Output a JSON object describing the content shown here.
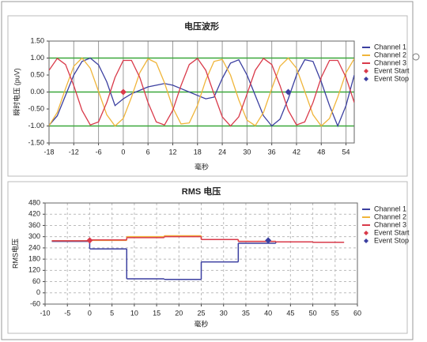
{
  "chart_data": [
    {
      "type": "line",
      "title": "电压波形",
      "x_label": "毫秒",
      "y_label": "瞬时电压 (puV)",
      "x": [
        -18,
        -16,
        -14,
        -12,
        -10,
        -8,
        -6,
        -4,
        -2,
        0,
        2,
        4,
        6,
        8,
        10,
        12,
        14,
        16,
        18,
        20,
        22,
        24,
        26,
        28,
        30,
        32,
        34,
        36,
        38,
        40,
        42,
        44,
        46,
        48,
        50,
        52,
        54,
        56
      ],
      "series": [
        {
          "name": "Channel 1",
          "color": "#3b3fa0",
          "values": [
            -0.98,
            -0.7,
            -0.1,
            0.5,
            0.9,
            1.0,
            0.8,
            0.3,
            -0.4,
            -0.2,
            -0.05,
            0.05,
            0.15,
            0.2,
            0.25,
            0.2,
            0.1,
            0.0,
            -0.1,
            -0.2,
            -0.15,
            0.4,
            0.85,
            0.95,
            0.5,
            -0.1,
            -0.7,
            -1.0,
            -0.8,
            -0.2,
            0.5,
            0.95,
            0.9,
            0.3,
            -0.4,
            -1.0,
            -0.4,
            0.5
          ]
        },
        {
          "name": "Channel 2",
          "color": "#f0b53a",
          "values": [
            -0.99,
            -0.6,
            0.1,
            0.76,
            1.0,
            0.7,
            0.02,
            -0.67,
            -1.0,
            -0.78,
            -0.15,
            0.57,
            0.98,
            0.86,
            0.27,
            -0.46,
            -0.94,
            -0.91,
            -0.39,
            0.35,
            0.9,
            0.96,
            0.5,
            -0.23,
            -0.83,
            -0.99,
            -0.6,
            0.1,
            0.76,
            1.0,
            0.7,
            0.02,
            -0.67,
            -1.0,
            -0.78,
            -0.15,
            0.57,
            0.98
          ]
        },
        {
          "name": "Channel 3",
          "color": "#d93a4a",
          "values": [
            0.64,
            0.99,
            0.81,
            0.19,
            -0.54,
            -0.97,
            -0.88,
            -0.31,
            0.43,
            0.93,
            0.93,
            0.43,
            -0.31,
            -0.88,
            -0.97,
            -0.54,
            0.19,
            0.81,
            0.99,
            0.64,
            -0.06,
            -0.73,
            -1.0,
            -0.73,
            -0.06,
            0.64,
            0.99,
            0.81,
            0.19,
            -0.54,
            -0.97,
            -0.88,
            -0.31,
            0.43,
            0.93,
            0.93,
            0.43,
            -0.31
          ]
        }
      ],
      "events": [
        {
          "name": "Event Start",
          "color": "#d93a4a",
          "x": 0,
          "y": 0
        },
        {
          "name": "Event Stop",
          "color": "#3b3fa0",
          "x": 40,
          "y": 0
        }
      ],
      "xlim": [
        -18,
        56
      ],
      "xticks": [
        -18,
        -12,
        -6,
        0,
        6,
        12,
        18,
        24,
        30,
        36,
        42,
        48,
        54
      ],
      "ylim": [
        -1.5,
        1.5
      ],
      "yticks": [
        {
          "value": 1.5,
          "label": "1.50"
        },
        {
          "value": 1,
          "label": "1.00"
        },
        {
          "value": 0.5,
          "label": "0.50"
        },
        {
          "value": 0,
          "label": "0.00"
        },
        {
          "value": -0.5,
          "label": "-0.50"
        },
        {
          "value": -1,
          "label": "-1.00"
        },
        {
          "value": -1.5,
          "label": "-1.50"
        }
      ],
      "reference_lines": [
        1,
        0,
        -1
      ],
      "reference_color": "#3aa83a",
      "grid": "vertical"
    },
    {
      "type": "step",
      "title": "RMS 电压",
      "x_label": "毫秒",
      "y_label": "RMS电压",
      "x": [
        -8.5,
        0,
        8.3,
        16.7,
        25,
        33.3,
        41.7,
        50
      ],
      "x_end": 57,
      "series": [
        {
          "name": "Channel 1",
          "color": "#3b3fa0",
          "values": [
            275,
            235,
            75,
            72,
            165,
            265,
            272,
            270
          ]
        },
        {
          "name": "Channel 2",
          "color": "#f0b53a",
          "values": [
            278,
            280,
            300,
            305,
            285,
            275,
            272,
            270
          ]
        },
        {
          "name": "Channel 3",
          "color": "#d93a4a",
          "values": [
            278,
            283,
            295,
            300,
            285,
            275,
            272,
            270
          ]
        }
      ],
      "events": [
        {
          "name": "Event Start",
          "color": "#d93a4a",
          "x": 0,
          "y": 280
        },
        {
          "name": "Event Stop",
          "color": "#3b3fa0",
          "x": 40,
          "y": 280
        }
      ],
      "xlim": [
        -10,
        60
      ],
      "xticks": [
        -10,
        -5,
        0,
        5,
        10,
        15,
        20,
        25,
        30,
        35,
        40,
        45,
        50,
        55,
        60
      ],
      "ylim": [
        -60,
        480
      ],
      "yticks": [
        -60,
        0,
        60,
        120,
        180,
        240,
        300,
        360,
        420,
        480
      ],
      "grid": "dashed"
    }
  ]
}
